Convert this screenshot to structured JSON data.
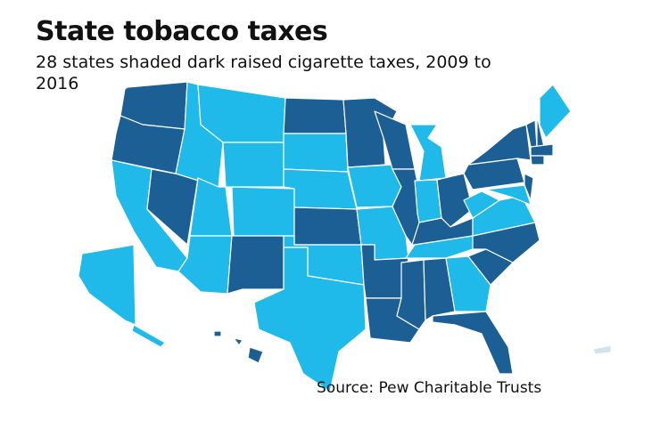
{
  "header": {
    "title": "State tobacco taxes",
    "subtitle": "28 states shaded dark raised cigarette taxes, 2009 to 2016"
  },
  "source": "Source: Pew Charitable Trusts"
}
